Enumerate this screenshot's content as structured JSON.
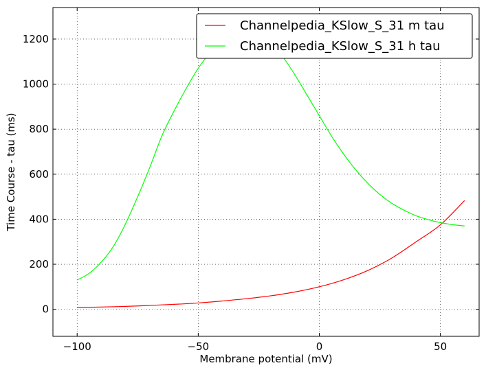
{
  "chart_data": {
    "type": "line",
    "title": "",
    "xlabel": "Membrane potential (mV)",
    "ylabel": "Time Course - tau (ms)",
    "xlim": [
      -110,
      66
    ],
    "ylim": [
      -120,
      1340
    ],
    "xticks": [
      -100,
      -50,
      0,
      50
    ],
    "yticks": [
      0,
      200,
      400,
      600,
      800,
      1000,
      1200
    ],
    "xtick_labels": [
      "−100",
      "−50",
      "0",
      "50"
    ],
    "ytick_labels": [
      "0",
      "200",
      "400",
      "600",
      "800",
      "1000",
      "1200"
    ],
    "grid": true,
    "legend_position": "top-right",
    "series": [
      {
        "name": "Channelpedia_KSlow_S_31 m tau",
        "color": "#ff0000",
        "x": [
          -100,
          -90,
          -80,
          -70,
          -60,
          -50,
          -40,
          -30,
          -20,
          -10,
          0,
          10,
          20,
          30,
          40,
          50,
          60
        ],
        "y": [
          8,
          10,
          13,
          17,
          22,
          28,
          37,
          47,
          60,
          77,
          100,
          131,
          172,
          228,
          300,
          375,
          483
        ]
      },
      {
        "name": "Channelpedia_KSlow_S_31 h tau",
        "color": "#00ff00",
        "x": [
          -100,
          -95,
          -90,
          -85,
          -80,
          -75,
          -70,
          -65,
          -60,
          -55,
          -50,
          -45,
          -40,
          -35,
          -30,
          -25,
          -20,
          -15,
          -10,
          -5,
          0,
          5,
          10,
          15,
          20,
          25,
          30,
          35,
          40,
          45,
          50,
          55,
          60
        ],
        "y": [
          130,
          160,
          210,
          280,
          380,
          500,
          630,
          770,
          880,
          980,
          1070,
          1140,
          1190,
          1215,
          1222,
          1212,
          1180,
          1120,
          1040,
          950,
          860,
          770,
          690,
          620,
          560,
          510,
          470,
          440,
          415,
          398,
          385,
          376,
          370
        ]
      }
    ]
  }
}
